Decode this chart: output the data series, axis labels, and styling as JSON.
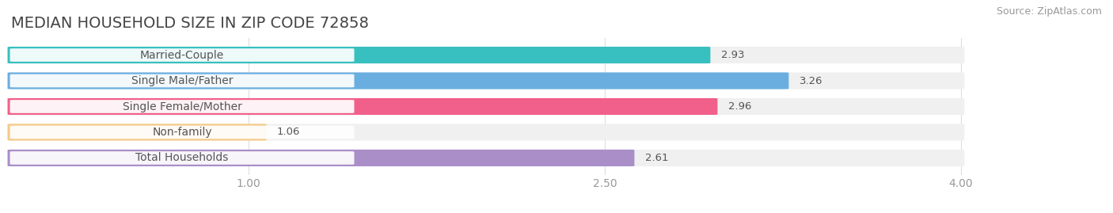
{
  "title": "MEDIAN HOUSEHOLD SIZE IN ZIP CODE 72858",
  "source": "Source: ZipAtlas.com",
  "categories": [
    "Married-Couple",
    "Single Male/Father",
    "Single Female/Mother",
    "Non-family",
    "Total Households"
  ],
  "values": [
    2.93,
    3.26,
    2.96,
    1.06,
    2.61
  ],
  "bar_colors": [
    "#38bfbf",
    "#6aaee0",
    "#f0608a",
    "#f5c98a",
    "#a98ec8"
  ],
  "bg_colors": [
    "#efefef",
    "#efefef",
    "#efefef",
    "#efefef",
    "#efefef"
  ],
  "xlim": [
    0,
    4.5
  ],
  "xmin": 0,
  "xmax": 4.0,
  "xticks": [
    1.0,
    2.5,
    4.0
  ],
  "title_fontsize": 14,
  "label_fontsize": 10,
  "value_fontsize": 9.5,
  "source_fontsize": 9,
  "bar_height": 0.62,
  "title_color": "#444444",
  "label_color": "#555555",
  "value_color": "#ffffff",
  "source_color": "#999999",
  "tick_color": "#999999",
  "background_color": "#ffffff",
  "grid_color": "#dddddd"
}
